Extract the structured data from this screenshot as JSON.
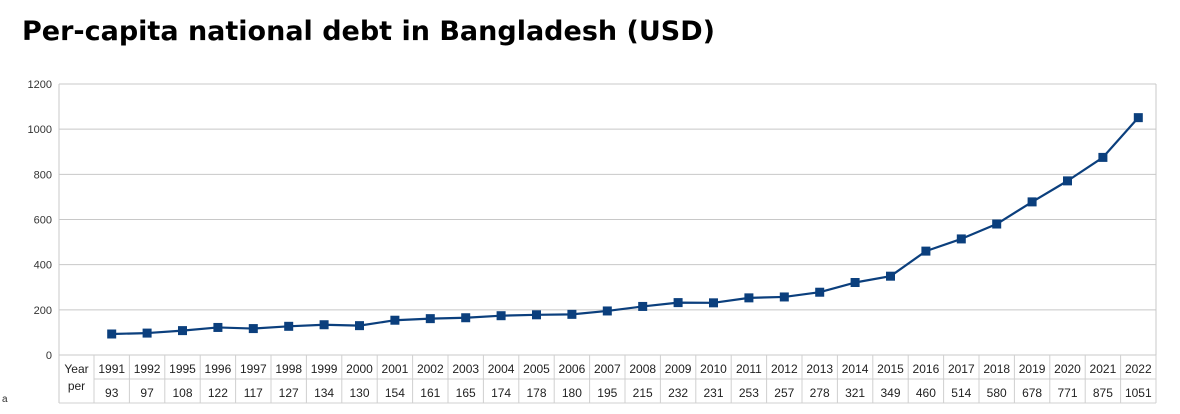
{
  "title": "Per-capita national debt in Bangladesh (USD)",
  "corner_label": "a",
  "chart_data": {
    "type": "line",
    "title": "Per-capita national debt in Bangladesh (USD)",
    "xlabel": "",
    "ylabel": "",
    "ylim": [
      0,
      1200
    ],
    "yticks": [
      0,
      200,
      400,
      600,
      800,
      1000,
      1200
    ],
    "grid": true,
    "line_color": "#0b3f7d",
    "table_row_labels": [
      "Year",
      "per"
    ],
    "categories": [
      "1991",
      "1992",
      "1995",
      "1996",
      "1997",
      "1998",
      "1999",
      "2000",
      "2001",
      "2002",
      "2003",
      "2004",
      "2005",
      "2006",
      "2007",
      "2008",
      "2009",
      "2010",
      "2011",
      "2012",
      "2013",
      "2014",
      "2015",
      "2016",
      "2017",
      "2018",
      "2019",
      "2020",
      "2021",
      "2022"
    ],
    "series": [
      {
        "values": [
          93,
          97,
          108,
          122,
          117,
          127,
          134,
          130,
          154,
          161,
          165,
          174,
          178,
          180,
          195,
          215,
          232,
          231,
          253,
          257,
          278,
          321,
          349,
          460,
          514,
          580,
          678,
          771,
          875,
          1051
        ]
      }
    ]
  }
}
